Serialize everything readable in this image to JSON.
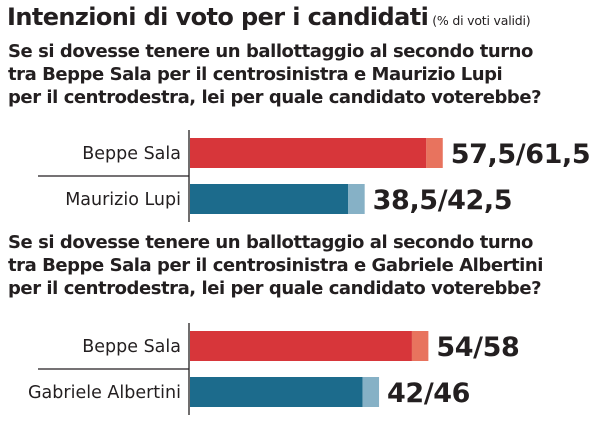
{
  "header": {
    "title": "Intenzioni di voto per i candidati",
    "subtitle": "(% di voti validi)"
  },
  "chart_data": [
    {
      "type": "bar",
      "orientation": "horizontal",
      "stacked_range": true,
      "question": "Se si dovesse tenere un ballottaggio al secondo turno tra Beppe Sala per il centrosinistra e Maurizio Lupi per il centrodestra, lei per quale candidato voterebbe?",
      "question_lines": [
        "Se si dovesse tenere un ballottaggio al secondo turno",
        "tra Beppe Sala per il centrosinistra e Maurizio Lupi",
        "per il centrodestra, lei per quale candidato voterebbe?"
      ],
      "categories": [
        "Beppe Sala",
        "Maurizio Lupi"
      ],
      "ranges": [
        [
          57.5,
          61.5
        ],
        [
          38.5,
          42.5
        ]
      ],
      "value_labels": [
        "57,5/61,5",
        "38,5/42,5"
      ],
      "colors": [
        {
          "low": "#d7363a",
          "high": "#e8735e"
        },
        {
          "low": "#1c6b8c",
          "high": "#86b1c6"
        }
      ],
      "xlim": [
        0,
        100
      ],
      "grid": false
    },
    {
      "type": "bar",
      "orientation": "horizontal",
      "stacked_range": true,
      "question": "Se si dovesse tenere un ballottaggio al secondo turno tra Beppe Sala per il centrosinistra e Gabriele Albertini per il centrodestra, lei per quale candidato voterebbe?",
      "question_lines": [
        "Se si dovesse tenere un ballottaggio al secondo turno",
        "tra Beppe Sala per il centrosinistra e Gabriele Albertini",
        "per il centrodestra, lei per quale candidato voterebbe?"
      ],
      "categories": [
        "Beppe Sala",
        "Gabriele Albertini"
      ],
      "ranges": [
        [
          54,
          58
        ],
        [
          42,
          46
        ]
      ],
      "value_labels": [
        "54/58",
        "42/46"
      ],
      "colors": [
        {
          "low": "#d7363a",
          "high": "#e8735e"
        },
        {
          "low": "#1c6b8c",
          "high": "#86b1c6"
        }
      ],
      "xlim": [
        0,
        100
      ],
      "grid": false
    }
  ]
}
